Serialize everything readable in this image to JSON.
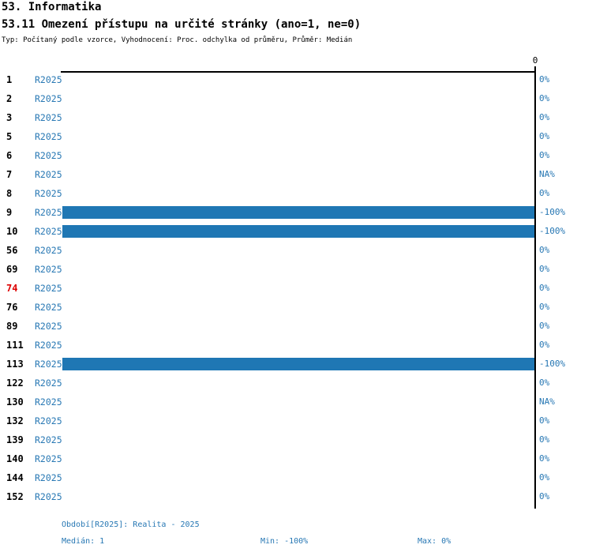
{
  "header": {
    "category": "53. Informatika",
    "question": "53.11 Omezení přístupu na určité stránky (ano=1, ne=0)",
    "meta": "Typ: Počítaný podle vzorce, Vyhodnocení: Proc. odchylka od průměru, Průměr: Medián"
  },
  "chart_data": {
    "type": "bar",
    "orientation": "horizontal",
    "title": "53.11 Omezení přístupu na určité stránky (ano=1, ne=0)",
    "categories": [
      "1",
      "2",
      "3",
      "5",
      "6",
      "7",
      "8",
      "9",
      "10",
      "56",
      "69",
      "74",
      "76",
      "89",
      "111",
      "113",
      "122",
      "130",
      "132",
      "139",
      "140",
      "144",
      "152"
    ],
    "period_label": "R2025",
    "values": [
      0,
      0,
      0,
      0,
      0,
      null,
      0,
      -100,
      -100,
      0,
      0,
      0,
      0,
      0,
      0,
      -100,
      0,
      null,
      0,
      0,
      0,
      0,
      0
    ],
    "value_labels": [
      "0%",
      "0%",
      "0%",
      "0%",
      "0%",
      "NA%",
      "0%",
      "-100%",
      "-100%",
      "0%",
      "0%",
      "0%",
      "0%",
      "0%",
      "0%",
      "-100%",
      "0%",
      "NA%",
      "0%",
      "0%",
      "0%",
      "0%",
      "0%"
    ],
    "highlighted_categories": [
      "74"
    ],
    "xlim": [
      -100,
      0
    ],
    "axis_zero_label": "0",
    "grid": false,
    "legend": false,
    "bar_color": "#1f77b4",
    "label_color": "#2878b4",
    "highlight_color": "#dd0000"
  },
  "footer": {
    "period": "Období[R2025]: Realita - 2025",
    "median": "Medián: 1",
    "min": "Min: -100%",
    "max": "Max: 0%"
  }
}
